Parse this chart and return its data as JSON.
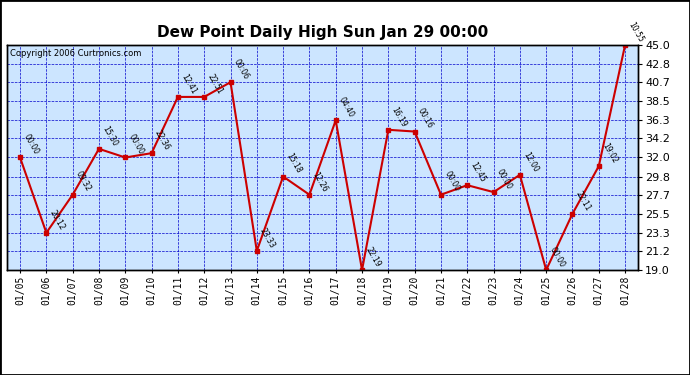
{
  "title": "Dew Point Daily High Sun Jan 29 00:00",
  "copyright": "Copyright 2006 Curtronics.com",
  "dates": [
    "01/05",
    "01/06",
    "01/07",
    "01/08",
    "01/09",
    "01/10",
    "01/11",
    "01/12",
    "01/13",
    "01/14",
    "01/15",
    "01/16",
    "01/17",
    "01/18",
    "01/19",
    "01/20",
    "01/21",
    "01/22",
    "01/23",
    "01/24",
    "01/25",
    "01/26",
    "01/27",
    "01/28"
  ],
  "values": [
    32.0,
    23.3,
    27.7,
    33.0,
    32.0,
    32.5,
    39.0,
    39.0,
    40.7,
    21.2,
    29.8,
    27.7,
    36.3,
    19.0,
    35.2,
    35.0,
    27.7,
    28.8,
    28.0,
    30.0,
    19.0,
    25.5,
    31.0,
    45.0
  ],
  "labels": [
    "00:00",
    "20:12",
    "09:32",
    "15:30",
    "00:00",
    "22:36",
    "12:41",
    "22:51",
    "00:06",
    "23:33",
    "15:18",
    "12:26",
    "04:40",
    "22:19",
    "16:19",
    "00:16",
    "00:00",
    "12:45",
    "00:00",
    "12:00",
    "00:00",
    "22:11",
    "19:02",
    "10:55"
  ],
  "line_color": "#cc0000",
  "marker_color": "#cc0000",
  "bg_color": "#cce5ff",
  "grid_color": "#0000cc",
  "label_color": "#000000",
  "title_color": "#000000",
  "border_color": "#000000",
  "ymin": 19.0,
  "ymax": 45.0,
  "yticks": [
    19.0,
    21.2,
    23.3,
    25.5,
    27.7,
    29.8,
    32.0,
    34.2,
    36.3,
    38.5,
    40.7,
    42.8,
    45.0
  ]
}
